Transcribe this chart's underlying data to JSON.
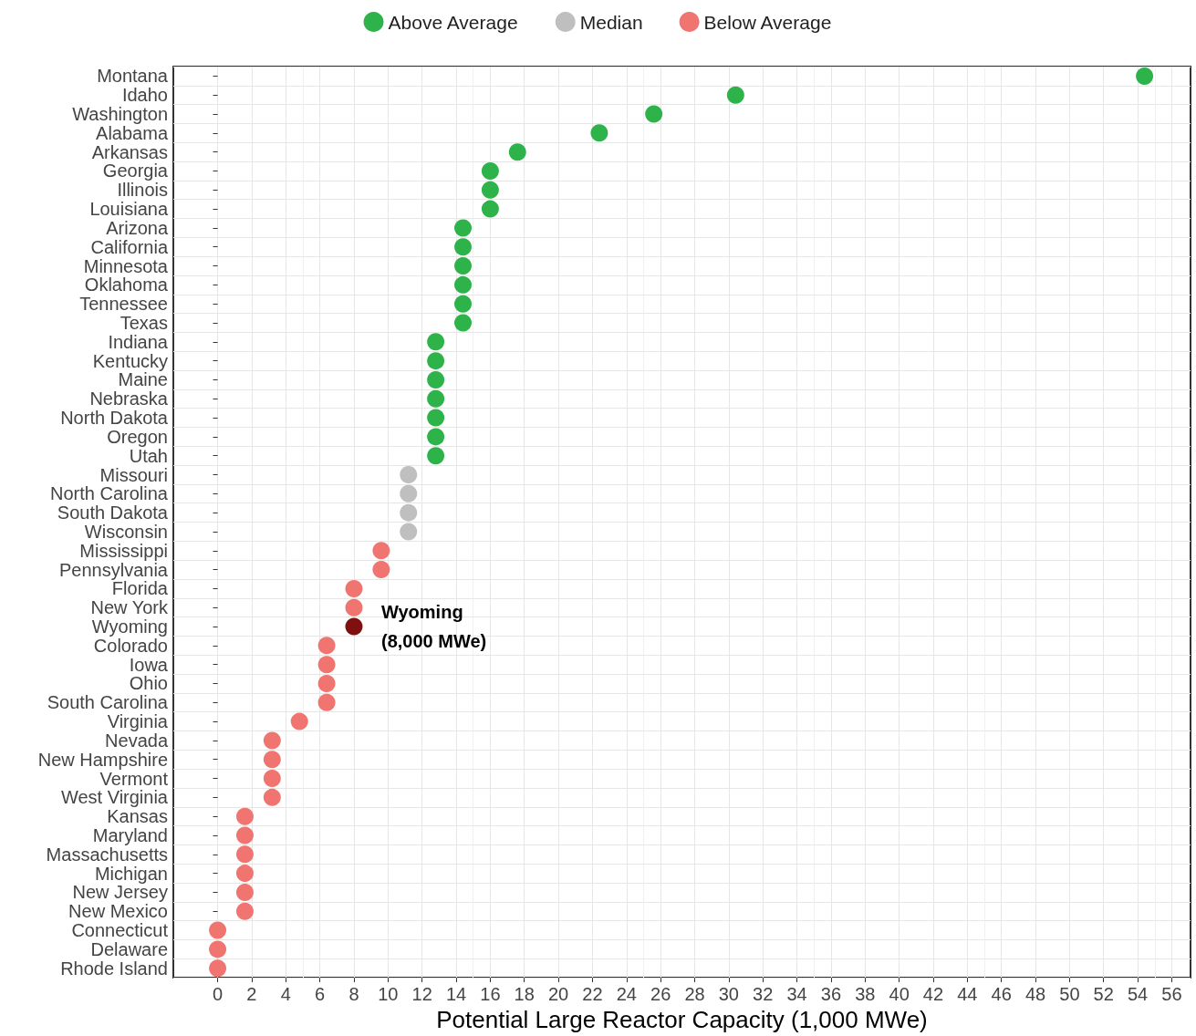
{
  "chart_data": {
    "type": "scatter",
    "orientation": "horizontal",
    "xlabel": "Potential Large Reactor Capacity (1,000 MWe)",
    "categories": [
      "Montana",
      "Idaho",
      "Washington",
      "Alabama",
      "Arkansas",
      "Georgia",
      "Illinois",
      "Louisiana",
      "Arizona",
      "California",
      "Minnesota",
      "Oklahoma",
      "Tennessee",
      "Texas",
      "Indiana",
      "Kentucky",
      "Maine",
      "Nebraska",
      "North Dakota",
      "Oregon",
      "Utah",
      "Missouri",
      "North Carolina",
      "South Dakota",
      "Wisconsin",
      "Mississippi",
      "Pennsylvania",
      "Florida",
      "New York",
      "Wyoming",
      "Colorado",
      "Iowa",
      "Ohio",
      "South Carolina",
      "Virginia",
      "Nevada",
      "New Hampshire",
      "Vermont",
      "West Virginia",
      "Kansas",
      "Maryland",
      "Massachusetts",
      "Michigan",
      "New Jersey",
      "New Mexico",
      "Connecticut",
      "Delaware",
      "Rhode Island"
    ],
    "series": [
      {
        "name": "Above Average",
        "color": "#2eb34a",
        "values": [
          54.4,
          30.4,
          25.6,
          22.4,
          17.6,
          16.0,
          16.0,
          16.0,
          14.4,
          14.4,
          14.4,
          14.4,
          14.4,
          14.4,
          12.8,
          12.8,
          12.8,
          12.8,
          12.8,
          12.8,
          12.8,
          null,
          null,
          null,
          null,
          null,
          null,
          null,
          null,
          null,
          null,
          null,
          null,
          null,
          null,
          null,
          null,
          null,
          null,
          null,
          null,
          null,
          null,
          null,
          null,
          null,
          null,
          null
        ]
      },
      {
        "name": "Median",
        "color": "#bfbfbf",
        "values": [
          null,
          null,
          null,
          null,
          null,
          null,
          null,
          null,
          null,
          null,
          null,
          null,
          null,
          null,
          null,
          null,
          null,
          null,
          null,
          null,
          null,
          11.2,
          11.2,
          11.2,
          11.2,
          null,
          null,
          null,
          null,
          null,
          null,
          null,
          null,
          null,
          null,
          null,
          null,
          null,
          null,
          null,
          null,
          null,
          null,
          null,
          null,
          null,
          null,
          null
        ]
      },
      {
        "name": "Below Average",
        "color": "#f07470",
        "values": [
          null,
          null,
          null,
          null,
          null,
          null,
          null,
          null,
          null,
          null,
          null,
          null,
          null,
          null,
          null,
          null,
          null,
          null,
          null,
          null,
          null,
          null,
          null,
          null,
          null,
          9.6,
          9.6,
          8.0,
          8.0,
          null,
          6.4,
          6.4,
          6.4,
          6.4,
          4.8,
          3.2,
          3.2,
          3.2,
          3.2,
          1.6,
          1.6,
          1.6,
          1.6,
          1.6,
          1.6,
          0,
          0,
          0
        ]
      },
      {
        "color": "#7f1010",
        "values": [
          null,
          null,
          null,
          null,
          null,
          null,
          null,
          null,
          null,
          null,
          null,
          null,
          null,
          null,
          null,
          null,
          null,
          null,
          null,
          null,
          null,
          null,
          null,
          null,
          null,
          null,
          null,
          null,
          null,
          8.0,
          null,
          null,
          null,
          null,
          null,
          null,
          null,
          null,
          null,
          null,
          null,
          null,
          null,
          null,
          null,
          null,
          null,
          null
        ]
      }
    ],
    "annotations": [
      {
        "text": "Wyoming\n(8,000 MWe)",
        "x": 8.0,
        "y": "Wyoming"
      }
    ],
    "xlim": [
      -2.6,
      57.1
    ],
    "xticks": [
      0,
      2,
      4,
      6,
      8,
      10,
      12,
      14,
      16,
      18,
      20,
      22,
      24,
      26,
      28,
      30,
      32,
      34,
      36,
      38,
      40,
      42,
      44,
      46,
      48,
      50,
      52,
      54,
      56
    ],
    "grid": true,
    "legend": "top",
    "marker": "circle"
  }
}
